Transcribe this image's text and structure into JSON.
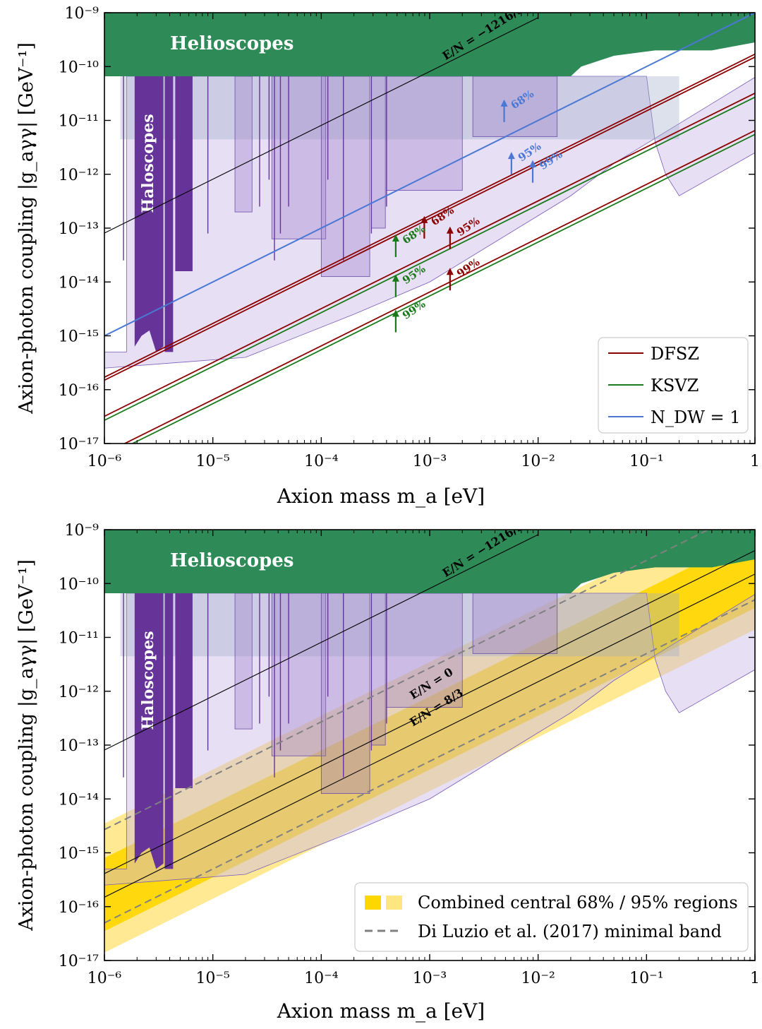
{
  "chart_data": [
    {
      "type": "line",
      "panel": "top",
      "xlabel": "Axion mass m_a [eV]",
      "ylabel": "Axion-photon coupling |g_aγγ| [GeV⁻¹]",
      "xscale": "log",
      "yscale": "log",
      "xlim": [
        1e-06,
        1
      ],
      "ylim": [
        1e-17,
        1e-09
      ],
      "xticks": [
        "10⁻⁶",
        "10⁻⁵",
        "10⁻⁴",
        "10⁻³",
        "10⁻²",
        "10⁻¹",
        "1"
      ],
      "yticks": [
        "10⁻¹⁷",
        "10⁻¹⁶",
        "10⁻¹⁵",
        "10⁻¹⁴",
        "10⁻¹³",
        "10⁻¹²",
        "10⁻¹¹",
        "10⁻¹⁰",
        "10⁻⁹"
      ],
      "region_labels": {
        "helioscopes": "Helioscopes",
        "haloscopes": "Haloscopes"
      },
      "legend": {
        "position": "lower-right",
        "entries": [
          "DFSZ",
          "KSVZ",
          "N_DW = 1"
        ]
      },
      "colors": {
        "DFSZ": "#8b0000",
        "KSVZ": "#1a7a1a",
        "N_DW = 1": "#4a78d4",
        "helioscopes": "#2e8b57",
        "haloscopes": "#663399"
      },
      "series": [
        {
          "name": "E/N = −1216/3",
          "x": [
            1e-06,
            0.01
          ],
          "y": [
            8.1e-14,
            8.1e-10
          ]
        },
        {
          "name": "N_DW = 1",
          "x": [
            1e-06,
            1
          ],
          "y": [
            1e-15,
            1e-09
          ]
        },
        {
          "name": "DFSZ",
          "x": [
            1e-06,
            1
          ],
          "y": [
            1.7e-16,
            1.7e-10
          ]
        },
        {
          "name": "DFSZ",
          "x": [
            1e-06,
            1
          ],
          "y": [
            1.5e-16,
            1.5e-10
          ]
        },
        {
          "name": "DFSZ",
          "x": [
            1e-06,
            1
          ],
          "y": [
            3.2e-17,
            3.2e-11
          ]
        },
        {
          "name": "DFSZ",
          "x": [
            1e-06,
            1
          ],
          "y": [
            6.5e-18,
            6.5e-12
          ]
        },
        {
          "name": "KSVZ",
          "x": [
            1e-06,
            1
          ],
          "y": [
            2.7e-17,
            2.7e-11
          ]
        },
        {
          "name": "KSVZ",
          "x": [
            1e-06,
            1
          ],
          "y": [
            5.5e-18,
            5.5e-12
          ]
        }
      ],
      "annotations": [
        {
          "text": "E/N = −1216/3",
          "x": 0.0014,
          "y": 1.3e-10,
          "color": "#000000",
          "angle": -32
        },
        {
          "text": "68%",
          "x": 0.006,
          "y": 1.6e-11,
          "color": "#4a78d4",
          "angle": -34,
          "arrow": true
        },
        {
          "text": "95%",
          "x": 0.007,
          "y": 1.7e-12,
          "color": "#4a78d4",
          "angle": -34,
          "arrow": true
        },
        {
          "text": "99%",
          "x": 0.011,
          "y": 1.2e-12,
          "color": "#4a78d4",
          "angle": -34,
          "arrow": true
        },
        {
          "text": "68%",
          "x": 0.0011,
          "y": 1.1e-13,
          "color": "#8b0000",
          "angle": -34,
          "arrow": true
        },
        {
          "text": "95%",
          "x": 0.0019,
          "y": 7e-14,
          "color": "#8b0000",
          "angle": -34,
          "arrow": true
        },
        {
          "text": "99%",
          "x": 0.0019,
          "y": 1.2e-14,
          "color": "#8b0000",
          "angle": -34,
          "arrow": true
        },
        {
          "text": "68%",
          "x": 0.0006,
          "y": 5e-14,
          "color": "#1a7a1a",
          "angle": -34,
          "arrow": true
        },
        {
          "text": "95%",
          "x": 0.0006,
          "y": 9e-15,
          "color": "#1a7a1a",
          "angle": -34,
          "arrow": true
        },
        {
          "text": "99%",
          "x": 0.0006,
          "y": 2e-15,
          "color": "#1a7a1a",
          "angle": -34,
          "arrow": true
        }
      ]
    },
    {
      "type": "area",
      "panel": "bottom",
      "xlabel": "Axion mass m_a [eV]",
      "ylabel": "Axion-photon coupling |g_aγγ| [GeV⁻¹]",
      "xscale": "log",
      "yscale": "log",
      "xlim": [
        1e-06,
        1
      ],
      "ylim": [
        1e-17,
        1e-09
      ],
      "xticks": [
        "10⁻⁶",
        "10⁻⁵",
        "10⁻⁴",
        "10⁻³",
        "10⁻²",
        "10⁻¹",
        "1"
      ],
      "yticks": [
        "10⁻¹⁷",
        "10⁻¹⁶",
        "10⁻¹⁵",
        "10⁻¹⁴",
        "10⁻¹³",
        "10⁻¹²",
        "10⁻¹¹",
        "10⁻¹⁰",
        "10⁻⁹"
      ],
      "region_labels": {
        "helioscopes": "Helioscopes",
        "haloscopes": "Haloscopes"
      },
      "legend": {
        "position": "lower-right",
        "entries": [
          "Combined central 68% / 95% regions",
          "Di Luzio et al. (2017) minimal band"
        ]
      },
      "colors": {
        "band68": "#ffd700",
        "band95": "#ffe680",
        "dashed": "#808080"
      },
      "bands": [
        {
          "name": "Combined central 95% region",
          "x": [
            1e-06,
            1
          ],
          "lower": [
            1.4e-17,
            1.4e-11
          ],
          "upper": [
            3.5e-15,
            3.5e-09
          ]
        },
        {
          "name": "Combined central 68% region",
          "x": [
            1e-06,
            1
          ],
          "lower": [
            3.5e-17,
            3.5e-11
          ],
          "upper": [
            8e-16,
            8e-10
          ]
        }
      ],
      "series": [
        {
          "name": "E/N = −1216/3",
          "x": [
            1e-06,
            0.01
          ],
          "y": [
            8.1e-14,
            8.1e-10
          ]
        },
        {
          "name": "E/N = 0",
          "x": [
            1e-06,
            1
          ],
          "y": [
            4.1e-16,
            4.1e-10
          ]
        },
        {
          "name": "E/N = 8/3",
          "x": [
            1e-06,
            1
          ],
          "y": [
            1.5e-16,
            1.5e-10
          ]
        },
        {
          "name": "Di Luzio et al. (2017) minimal band",
          "x": [
            1e-06,
            1
          ],
          "y": [
            2.7e-15,
            2.7e-09
          ]
        },
        {
          "name": "Di Luzio et al. (2017) minimal band",
          "x": [
            1e-06,
            1
          ],
          "y": [
            5e-17,
            5e-11
          ]
        }
      ],
      "annotations": [
        {
          "text": "E/N = −1216/3",
          "x": 0.0014,
          "y": 1.3e-10,
          "color": "#000000",
          "angle": -32
        },
        {
          "text": "E/N = 0",
          "x": 0.0007,
          "y": 7e-13,
          "color": "#000000",
          "angle": -32
        },
        {
          "text": "E/N = 8/3",
          "x": 0.0007,
          "y": 2.2e-13,
          "color": "#000000",
          "angle": -32
        }
      ]
    }
  ]
}
